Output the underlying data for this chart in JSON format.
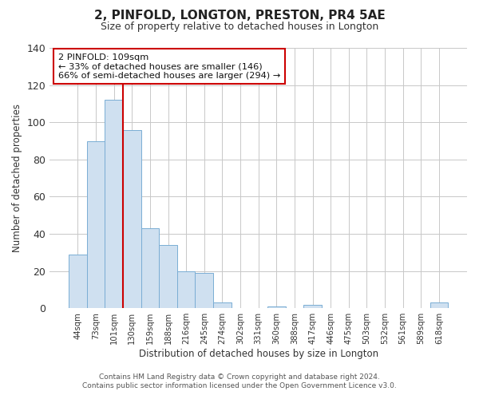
{
  "title": "2, PINFOLD, LONGTON, PRESTON, PR4 5AE",
  "subtitle": "Size of property relative to detached houses in Longton",
  "xlabel": "Distribution of detached houses by size in Longton",
  "ylabel": "Number of detached properties",
  "bar_labels": [
    "44sqm",
    "73sqm",
    "101sqm",
    "130sqm",
    "159sqm",
    "188sqm",
    "216sqm",
    "245sqm",
    "274sqm",
    "302sqm",
    "331sqm",
    "360sqm",
    "388sqm",
    "417sqm",
    "446sqm",
    "475sqm",
    "503sqm",
    "532sqm",
    "561sqm",
    "589sqm",
    "618sqm"
  ],
  "bar_values": [
    29,
    90,
    112,
    96,
    43,
    34,
    20,
    19,
    3,
    0,
    0,
    1,
    0,
    2,
    0,
    0,
    0,
    0,
    0,
    0,
    3
  ],
  "bar_color": "#cfe0f0",
  "bar_edgecolor": "#7aadd4",
  "ylim": [
    0,
    140
  ],
  "yticks": [
    0,
    20,
    40,
    60,
    80,
    100,
    120,
    140
  ],
  "vline_color": "#cc0000",
  "annotation_text": "2 PINFOLD: 109sqm\n← 33% of detached houses are smaller (146)\n66% of semi-detached houses are larger (294) →",
  "annotation_box_edgecolor": "#cc0000",
  "footer_line1": "Contains HM Land Registry data © Crown copyright and database right 2024.",
  "footer_line2": "Contains public sector information licensed under the Open Government Licence v3.0.",
  "bg_color": "#ffffff",
  "grid_color": "#c8c8c8"
}
